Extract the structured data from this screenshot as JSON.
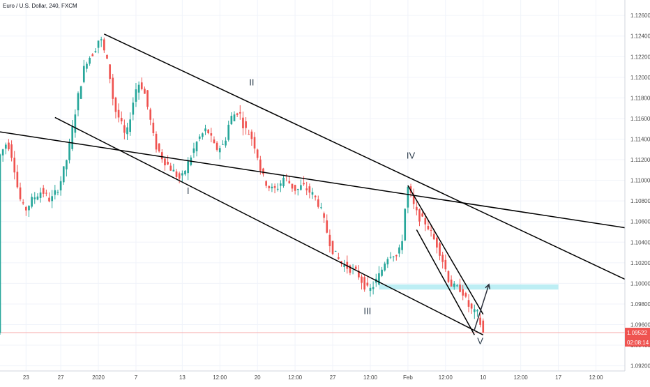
{
  "title": "Euro / U.S. Dollar, 240, FXCM",
  "colors": {
    "up": "#26a69a",
    "down": "#ef5350",
    "trendline": "#000000",
    "zone": "#b2ebf2",
    "price_tag": "#ef5350",
    "price_line": "#f7a8a8",
    "grid": "#f0f3fa",
    "wave_label": "#2a3a4a"
  },
  "chart_data": {
    "type": "candlestick",
    "instrument": "Euro / U.S. Dollar",
    "timeframe": "240",
    "source": "FXCM",
    "grid": true,
    "ylim": [
      1.0915,
      1.1275
    ],
    "y_ticks": [
      "1.12600",
      "1.12400",
      "1.12200",
      "1.12000",
      "1.11800",
      "1.11600",
      "1.11400",
      "1.11200",
      "1.11000",
      "1.10800",
      "1.10600",
      "1.10400",
      "1.10200",
      "1.10000",
      "1.09800",
      "1.09600",
      "1.09400",
      "1.09200"
    ],
    "x_ticks": [
      "23",
      "27",
      "2020",
      "7",
      "13",
      "12:00",
      "20",
      "12:00",
      "27",
      "12:00",
      "Feb",
      "12:00",
      "10",
      "12:00",
      "17",
      "12:00"
    ],
    "x_tick_index": [
      9,
      21,
      34,
      47,
      63,
      76,
      89,
      102,
      115,
      128,
      141,
      154,
      167,
      180,
      193,
      206
    ],
    "x_range": [
      0,
      216
    ],
    "last_price": "1.09522",
    "countdown": "02:08:14",
    "ohlc_control_points": [
      [
        0,
        1.1122
      ],
      [
        3,
        1.1138
      ],
      [
        5,
        1.112
      ],
      [
        7,
        1.1085
      ],
      [
        9,
        1.107
      ],
      [
        12,
        1.1083
      ],
      [
        15,
        1.109
      ],
      [
        18,
        1.108
      ],
      [
        21,
        1.1095
      ],
      [
        24,
        1.1125
      ],
      [
        27,
        1.1175
      ],
      [
        30,
        1.1215
      ],
      [
        33,
        1.1225
      ],
      [
        35,
        1.124
      ],
      [
        38,
        1.121
      ],
      [
        40,
        1.117
      ],
      [
        42,
        1.1158
      ],
      [
        44,
        1.114
      ],
      [
        46,
        1.117
      ],
      [
        48,
        1.1195
      ],
      [
        50,
        1.119
      ],
      [
        52,
        1.1165
      ],
      [
        54,
        1.1135
      ],
      [
        57,
        1.112
      ],
      [
        60,
        1.111
      ],
      [
        63,
        1.11
      ],
      [
        66,
        1.112
      ],
      [
        69,
        1.114
      ],
      [
        72,
        1.115
      ],
      [
        75,
        1.113
      ],
      [
        78,
        1.1135
      ],
      [
        80,
        1.116
      ],
      [
        83,
        1.1168
      ],
      [
        85,
        1.115
      ],
      [
        87,
        1.1145
      ],
      [
        89,
        1.113
      ],
      [
        91,
        1.1105
      ],
      [
        93,
        1.1095
      ],
      [
        95,
        1.109
      ],
      [
        97,
        1.1095
      ],
      [
        99,
        1.1105
      ],
      [
        101,
        1.1095
      ],
      [
        103,
        1.109
      ],
      [
        105,
        1.1095
      ],
      [
        107,
        1.109
      ],
      [
        109,
        1.1085
      ],
      [
        111,
        1.1075
      ],
      [
        113,
        1.1055
      ],
      [
        115,
        1.1035
      ],
      [
        117,
        1.1025
      ],
      [
        119,
        1.1018
      ],
      [
        121,
        1.1015
      ],
      [
        124,
        1.101
      ],
      [
        126,
        1.1
      ],
      [
        128,
        1.0992
      ],
      [
        130,
        1.1
      ],
      [
        132,
        1.101
      ],
      [
        134,
        1.1025
      ],
      [
        136,
        1.103
      ],
      [
        138,
        1.1025
      ],
      [
        140,
        1.105
      ],
      [
        141,
        1.1095
      ],
      [
        142,
        1.109
      ],
      [
        144,
        1.107
      ],
      [
        146,
        1.1062
      ],
      [
        148,
        1.1058
      ],
      [
        150,
        1.1045
      ],
      [
        152,
        1.1035
      ],
      [
        154,
        1.1018
      ],
      [
        156,
        1.1
      ],
      [
        158,
        1.0995
      ],
      [
        160,
        1.0995
      ],
      [
        162,
        1.098
      ],
      [
        164,
        1.0972
      ],
      [
        166,
        1.097
      ],
      [
        167,
        1.0952
      ]
    ]
  },
  "annotations": {
    "waves": [
      {
        "label": "I",
        "x": 65,
        "y": 1.1087
      },
      {
        "label": "II",
        "x": 87,
        "y": 1.1192
      },
      {
        "label": "III",
        "x": 127,
        "y": 1.097
      },
      {
        "label": "IV",
        "x": 142,
        "y": 1.1121
      },
      {
        "label": "V",
        "x": 166,
        "y": 1.0941
      }
    ],
    "trendlines": [
      {
        "from": [
          36,
          1.1242
        ],
        "to": [
          216,
          1.1004
        ]
      },
      {
        "from": [
          19,
          1.1161
        ],
        "to": [
          167,
          1.095
        ]
      },
      {
        "from": [
          0,
          1.1147
        ],
        "to": [
          216,
          1.1054
        ]
      },
      {
        "from": [
          141,
          1.1095
        ],
        "to": [
          167,
          1.097
        ]
      },
      {
        "from": [
          144,
          1.1052
        ],
        "to": [
          164,
          1.095
        ]
      }
    ],
    "zone": {
      "x_from": 131,
      "x_to": 193,
      "y_low": 1.0994,
      "y_high": 1.0999
    },
    "arrow": {
      "from": [
        164,
        1.0955
      ],
      "to": [
        169,
        1.0999
      ]
    }
  }
}
